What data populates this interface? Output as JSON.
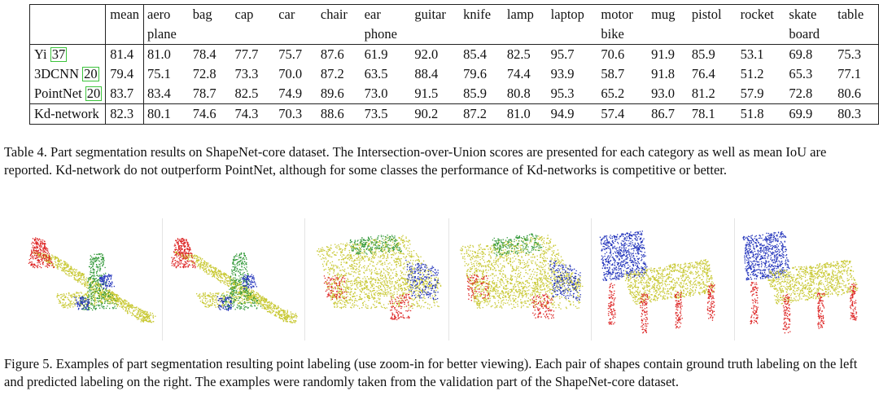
{
  "table": {
    "header_row1": [
      "",
      "mean",
      "aero",
      "bag",
      "cap",
      "car",
      "chair",
      "ear",
      "guitar",
      "knife",
      "lamp",
      "laptop",
      "motor",
      "mug",
      "pistol",
      "rocket",
      "skate",
      "table"
    ],
    "header_row2": [
      "",
      "",
      "plane",
      "",
      "",
      "",
      "",
      "phone",
      "",
      "",
      "",
      "",
      "bike",
      "",
      "",
      "",
      "board",
      ""
    ],
    "rows": [
      {
        "name": "Yi",
        "cite": "37",
        "mean": "81.4",
        "values": [
          "81.0",
          "78.4",
          "77.7",
          "75.7",
          "87.6",
          "61.9",
          "92.0",
          "85.4",
          "82.5",
          "95.7",
          "70.6",
          "91.9",
          "85.9",
          "53.1",
          "69.8",
          "75.3"
        ]
      },
      {
        "name": "3DCNN",
        "cite": "20",
        "mean": "79.4",
        "values": [
          "75.1",
          "72.8",
          "73.3",
          "70.0",
          "87.2",
          "63.5",
          "88.4",
          "79.6",
          "74.4",
          "93.9",
          "58.7",
          "91.8",
          "76.4",
          "51.2",
          "65.3",
          "77.1"
        ]
      },
      {
        "name": "PointNet",
        "cite": "20",
        "mean": "83.7",
        "values": [
          "83.4",
          "78.7",
          "82.5",
          "74.9",
          "89.6",
          "73.0",
          "91.5",
          "85.9",
          "80.8",
          "95.3",
          "65.2",
          "93.0",
          "81.2",
          "57.9",
          "72.8",
          "80.6"
        ]
      },
      {
        "name": "Kd-network",
        "cite": "",
        "mean": "82.3",
        "values": [
          "80.1",
          "74.6",
          "74.3",
          "70.3",
          "88.6",
          "73.5",
          "90.2",
          "87.2",
          "81.0",
          "94.9",
          "57.4",
          "86.7",
          "78.1",
          "51.8",
          "69.9",
          "80.3"
        ]
      }
    ]
  },
  "table_caption": "Table 4. Part segmentation results on ShapeNet-core dataset. The Intersection-over-Union scores are presented for each category as well as mean IoU are reported. Kd-network do not outperform PointNet, although for some classes the performance of Kd-networks is competitive or better.",
  "figure_caption": "Figure 5. Examples of part segmentation resulting point labeling (use zoom-in for better viewing). Each pair of shapes contain ground truth labeling on the left and predicted labeling on the right. The examples were randomly taken from the validation part of the ShapeNet-core dataset.",
  "figure": {
    "panels": [
      {
        "shape": "airplane",
        "role": "ground-truth"
      },
      {
        "shape": "airplane",
        "role": "predicted"
      },
      {
        "shape": "car",
        "role": "ground-truth"
      },
      {
        "shape": "car",
        "role": "predicted"
      },
      {
        "shape": "chair",
        "role": "ground-truth"
      },
      {
        "shape": "chair",
        "role": "predicted"
      }
    ],
    "colors": {
      "yellow": "#c8c832",
      "red": "#dd2222",
      "green": "#33993a",
      "blue": "#2233bb"
    }
  }
}
